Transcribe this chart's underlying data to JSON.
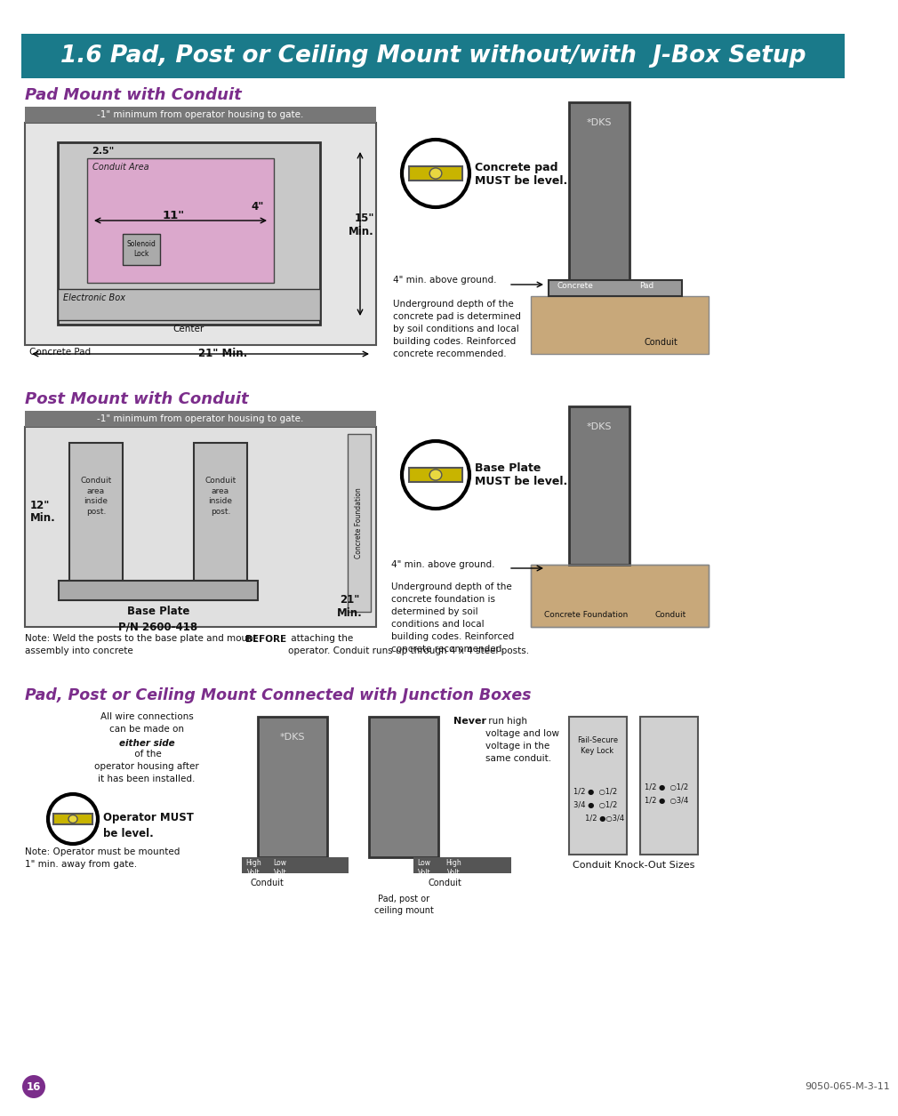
{
  "title_text": "1.6 Pad, Post or Ceiling Mount without/with  J-Box Setup",
  "title_bg": "#1a7a8a",
  "title_fg": "#ffffff",
  "section1_title": "Pad Mount with Conduit",
  "section2_title": "Post Mount with Conduit",
  "section3_title": "Pad, Post or Ceiling Mount Connected with Junction Boxes",
  "section_title_color": "#7b2d8b",
  "bg_color": "#ffffff",
  "gray_bar_text": "-1\" minimum from operator housing to gate.",
  "pad_mount_note": "Underground depth of the\nconcrete pad is determined\nby soil conditions and local\nbuilding codes. Reinforced\nconcrete recommended.",
  "post_mount_note": "Underground depth of the\nconcrete foundation is\ndetermined by soil\nconditions and local\nbuilding codes. Reinforced\nconcrete recommended.",
  "concrete_pad_label": "Concrete pad\nMUST be level.",
  "base_plate_label": "Base Plate\nMUST be level.",
  "page_num": "16",
  "doc_num": "9050-065-M-3-11",
  "pink_fill": "#dba8cc",
  "tan_fill": "#c8a87a",
  "weld_note_part1": "Note: Weld the posts to the base plate and mount\nassembly into concrete ",
  "weld_note_bold": "BEFORE",
  "weld_note_part2": " attaching the\noperator. Conduit runs up through 4 x 4 steel posts.",
  "never_bold": "Never",
  "never_rest": " run high\nvoltage and low\nvoltage in the\nsame conduit.",
  "operator_note": "Note: Operator must be mounted\n1\" min. away from gate.",
  "wire_connections1": "All wire connections\ncan be made on\n",
  "wire_connections_bold": "either side",
  "wire_connections2": " of the\noperator housing after\nit has been installed.",
  "operator_must": "Operator MUST\nbe level.",
  "conduit_knockout": "Conduit Knock-Out Sizes"
}
